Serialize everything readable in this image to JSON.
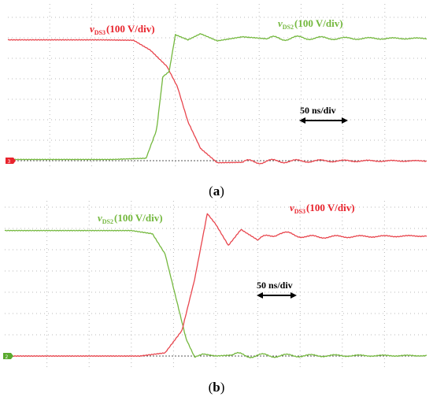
{
  "chart_data": [
    {
      "panel": "(a)",
      "type": "line",
      "scale": "50 ns/div",
      "caption_label": "a",
      "series": [
        {
          "name_main": "v",
          "name_sub": "DS3",
          "unit": "(100 V/div)",
          "color": "#e8454d",
          "x": [
            0,
            2.2,
            3.0,
            3.4,
            3.8,
            4.05,
            4.3,
            4.6,
            5.0,
            5.6,
            6.2,
            7.5,
            10
          ],
          "y": [
            5.9,
            5.9,
            5.88,
            5.4,
            4.6,
            3.6,
            1.9,
            0.6,
            -0.1,
            -0.08,
            -0.03,
            -0.01,
            -0.01
          ]
        },
        {
          "name_main": "v",
          "name_sub": "DS2",
          "unit": "(100 V/div)",
          "color": "#74b83e",
          "x": [
            0,
            2.5,
            3.3,
            3.55,
            3.7,
            3.85,
            4.0,
            4.3,
            4.6,
            5.0,
            5.6,
            6.2,
            7.0,
            8.0,
            10
          ],
          "y": [
            0.06,
            0.06,
            0.12,
            1.5,
            4.1,
            4.35,
            6.15,
            5.9,
            6.2,
            5.85,
            6.05,
            5.95,
            6.0,
            5.97,
            5.97
          ]
        }
      ]
    },
    {
      "panel": "(b)",
      "type": "line",
      "scale": "50 ns/div",
      "caption_label": "b",
      "series": [
        {
          "name_main": "v",
          "name_sub": "DS2",
          "unit": "(100 V/div)",
          "color": "#74b83e",
          "x": [
            0,
            3.0,
            3.5,
            3.8,
            4.05,
            4.3,
            4.5,
            4.7,
            5.0,
            5.4,
            6.0,
            7.0,
            10
          ],
          "y": [
            5.9,
            5.9,
            5.75,
            4.8,
            2.8,
            0.8,
            -0.05,
            0.1,
            0.0,
            0.05,
            0.02,
            0.02,
            0.02
          ]
        },
        {
          "name_main": "v",
          "name_sub": "DS3",
          "unit": "(100 V/div)",
          "color": "#e8454d",
          "x": [
            0,
            3.2,
            3.8,
            4.2,
            4.5,
            4.8,
            5.0,
            5.3,
            5.6,
            6.0,
            6.5,
            7.2,
            10
          ],
          "y": [
            0.0,
            0.0,
            0.15,
            1.2,
            3.6,
            6.7,
            6.2,
            5.2,
            5.95,
            5.45,
            5.8,
            5.6,
            5.65
          ]
        }
      ]
    }
  ]
}
